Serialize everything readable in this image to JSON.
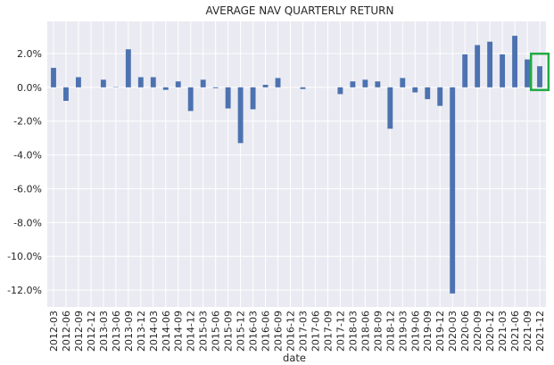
{
  "chart_data": {
    "type": "bar",
    "title": "AVERAGE NAV QUARTERLY RETURN",
    "xlabel": "date",
    "ylabel": "",
    "ylim": [
      -13.0,
      3.9
    ],
    "yticks": [
      2.0,
      0.0,
      -2.0,
      -4.0,
      -6.0,
      -8.0,
      -10.0,
      -12.0
    ],
    "ytick_labels": [
      "2.0%",
      "0.0%",
      "-2.0%",
      "-4.0%",
      "-6.0%",
      "-8.0%",
      "-10.0%",
      "-12.0%"
    ],
    "grid": true,
    "categories": [
      "2012-03",
      "2012-06",
      "2012-09",
      "2012-12",
      "2013-03",
      "2013-06",
      "2013-09",
      "2013-12",
      "2014-03",
      "2014-06",
      "2014-09",
      "2014-12",
      "2015-03",
      "2015-06",
      "2015-09",
      "2015-12",
      "2016-03",
      "2016-06",
      "2016-09",
      "2016-12",
      "2017-03",
      "2017-06",
      "2017-09",
      "2017-12",
      "2018-03",
      "2018-06",
      "2018-09",
      "2018-12",
      "2019-03",
      "2019-06",
      "2019-09",
      "2019-12",
      "2020-03",
      "2020-06",
      "2020-09",
      "2020-12",
      "2021-03",
      "2021-06",
      "2021-09",
      "2021-12"
    ],
    "values": [
      1.15,
      -0.8,
      0.6,
      0.0,
      0.45,
      0.02,
      2.25,
      0.6,
      0.6,
      -0.15,
      0.35,
      -1.4,
      0.45,
      -0.05,
      -1.25,
      -3.3,
      -1.3,
      0.15,
      0.55,
      0.0,
      -0.1,
      0.0,
      0.0,
      -0.4,
      0.35,
      0.45,
      0.35,
      -2.45,
      0.55,
      -0.3,
      -0.7,
      -1.1,
      -12.2,
      1.95,
      2.5,
      2.7,
      1.95,
      3.05,
      1.65,
      1.25
    ],
    "bar_color": "#4c72b0",
    "highlight": {
      "category": "2021-12",
      "color": "#22aa44"
    }
  },
  "colors": {
    "plot_background": "#eaeaf2",
    "grid": "#ffffff",
    "text": "#262626"
  }
}
